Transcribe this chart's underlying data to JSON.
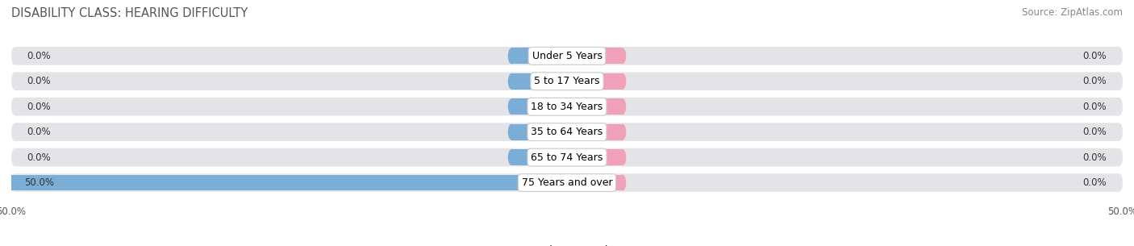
{
  "title": "DISABILITY CLASS: HEARING DIFFICULTY",
  "source": "Source: ZipAtlas.com",
  "categories": [
    "Under 5 Years",
    "5 to 17 Years",
    "18 to 34 Years",
    "35 to 64 Years",
    "65 to 74 Years",
    "75 Years and over"
  ],
  "male_values": [
    0.0,
    0.0,
    0.0,
    0.0,
    0.0,
    50.0
  ],
  "female_values": [
    0.0,
    0.0,
    0.0,
    0.0,
    0.0,
    0.0
  ],
  "male_color": "#7aaed6",
  "female_color": "#f0a0b8",
  "bar_bg_color": "#e4e4e8",
  "bar_row_bg": "#eeeeee",
  "xlim": 50.0,
  "min_bar_width": 5.0,
  "title_fontsize": 10.5,
  "source_fontsize": 8.5,
  "label_fontsize": 8.5,
  "category_fontsize": 9,
  "bar_height": 0.72,
  "fig_width": 14.06,
  "fig_height": 3.05
}
